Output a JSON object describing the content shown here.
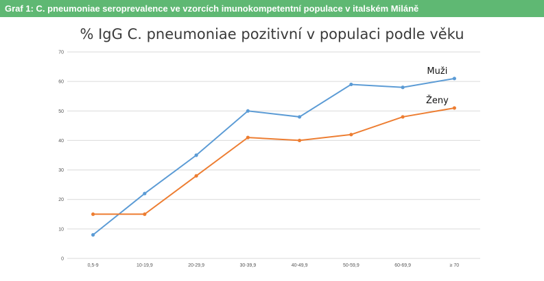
{
  "header": {
    "title": "Graf 1: C. pneumoniae seroprevalence ve vzorcích imunokompetentní populace v italském Miláně"
  },
  "colors": {
    "header_bg": "#5fb873",
    "series_muzi": "#5b9bd5",
    "series_zeny": "#ed7d31",
    "grid": "#d9d9d9"
  },
  "chart_data": {
    "type": "line",
    "title": "% IgG C. pneumoniae pozitivní v populaci podle věku",
    "xlabel": "",
    "ylabel": "",
    "categories": [
      "0,5-9",
      "10-19,9",
      "20-29,9",
      "30-39,9",
      "40-49,9",
      "50-59,9",
      "60-69,9",
      "≥ 70"
    ],
    "ylim": [
      0,
      70
    ],
    "yticks": [
      0,
      10,
      20,
      30,
      40,
      50,
      60,
      70
    ],
    "grid": true,
    "series": [
      {
        "name": "Muži",
        "values": [
          8,
          22,
          35,
          50,
          48,
          59,
          58,
          61
        ]
      },
      {
        "name": "Ženy",
        "values": [
          15,
          15,
          28,
          41,
          40,
          42,
          48,
          51
        ]
      }
    ]
  }
}
